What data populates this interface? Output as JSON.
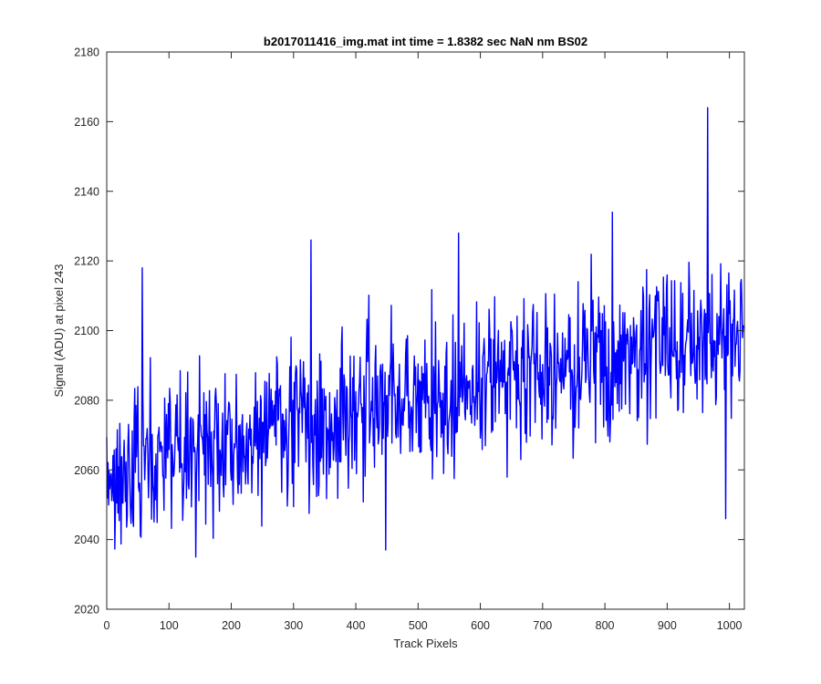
{
  "chart_data": {
    "type": "line",
    "title": "b2017011416_img.mat int time = 1.8382 sec  NaN nm BS02",
    "xlabel": "Track Pixels",
    "ylabel": "Signal (ADU) at pixel 243",
    "xlim": [
      0,
      1024
    ],
    "ylim": [
      2020,
      2180
    ],
    "xticks": [
      0,
      100,
      200,
      300,
      400,
      500,
      600,
      700,
      800,
      900,
      1000
    ],
    "yticks": [
      2020,
      2040,
      2060,
      2080,
      2100,
      2120,
      2140,
      2160,
      2180
    ],
    "grid": false,
    "series_color": "#0000ff",
    "trend": {
      "x": [
        0,
        1024
      ],
      "y": [
        2060,
        2100
      ]
    },
    "noise_std": 11,
    "samples": 1024,
    "notable_points": [
      {
        "x": 57,
        "y": 2118
      },
      {
        "x": 143,
        "y": 2035
      },
      {
        "x": 328,
        "y": 2126
      },
      {
        "x": 448,
        "y": 2037
      },
      {
        "x": 565,
        "y": 2128
      },
      {
        "x": 812,
        "y": 2134
      },
      {
        "x": 965,
        "y": 2164
      },
      {
        "x": 994,
        "y": 2046
      }
    ]
  }
}
